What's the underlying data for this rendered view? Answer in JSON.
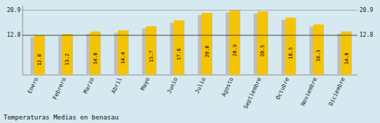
{
  "chart_data": {
    "type": "bar",
    "title": "Temperaturas Medias en benasau",
    "categories": [
      "Enero",
      "Febrero",
      "Marzo",
      "Abril",
      "Mayo",
      "Junio",
      "Julio",
      "Agosto",
      "Septiembre",
      "Octubre",
      "Noviembre",
      "Diciembre"
    ],
    "series": [
      {
        "color": "#BEBEBE",
        "values": [
          12.2,
          12.5,
          13.3,
          13.6,
          15.0,
          16.8,
          19.3,
          20.2,
          19.8,
          17.8,
          15.6,
          13.3
        ]
      },
      {
        "color": "#F5C400",
        "values": [
          12.8,
          13.2,
          14.0,
          14.4,
          15.7,
          17.6,
          20.0,
          20.9,
          20.5,
          18.5,
          16.3,
          14.0
        ],
        "value_labels": [
          "12.8",
          "13.2",
          "14.0",
          "14.4",
          "15.7",
          "17.6",
          "20.0",
          "20.9",
          "20.5",
          "18.5",
          "16.3",
          "14.0"
        ],
        "data_labels": true
      }
    ],
    "ylim": [
      0,
      22.363
    ],
    "yticks": [
      12.8,
      20.9
    ],
    "y2lim": [
      0,
      22.363
    ],
    "y2ticks": [
      12.8,
      20.9
    ],
    "grid": true
  }
}
